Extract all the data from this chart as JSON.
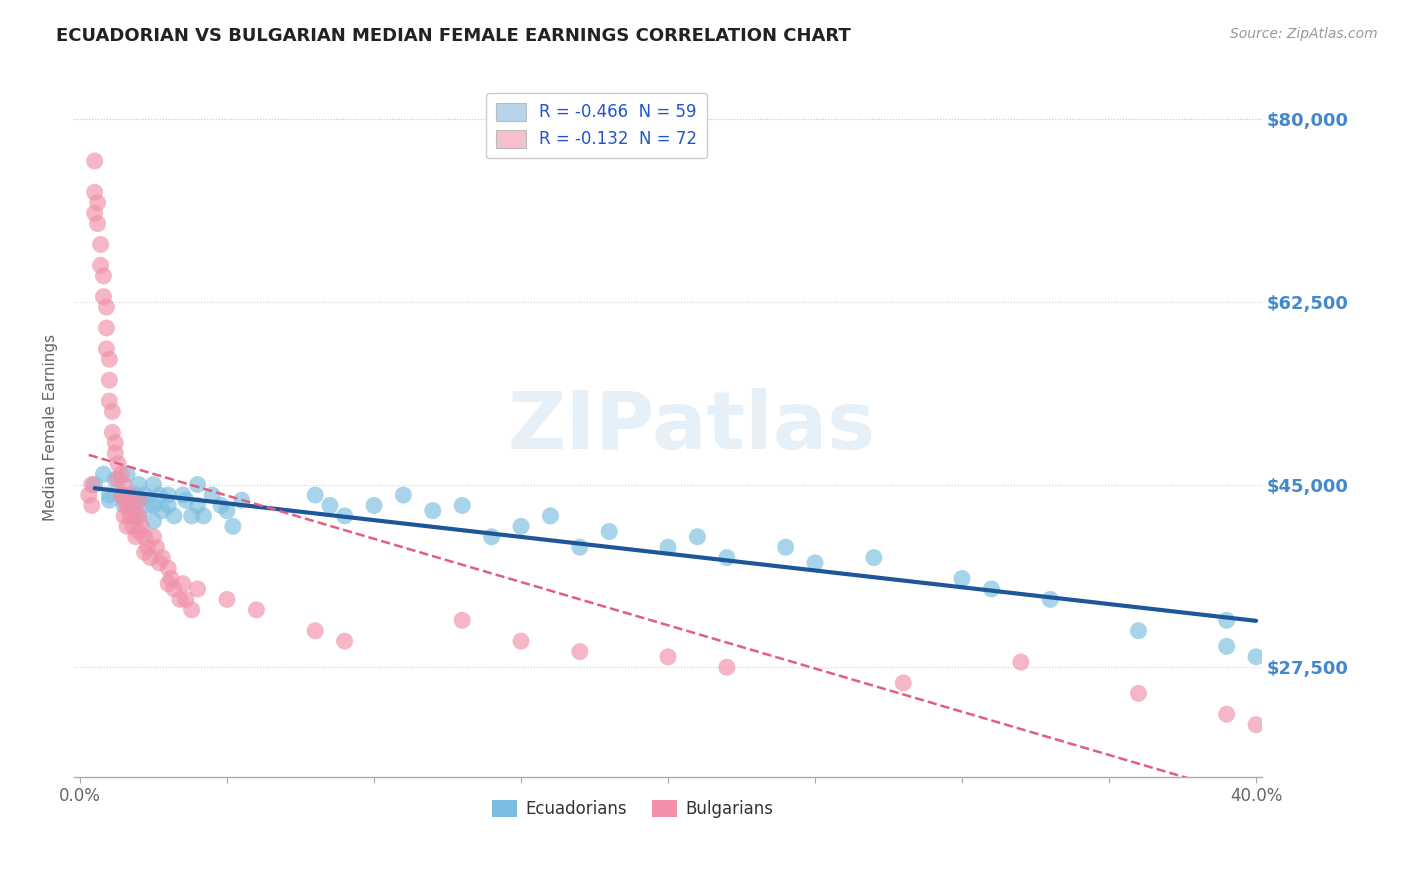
{
  "title": "ECUADORIAN VS BULGARIAN MEDIAN FEMALE EARNINGS CORRELATION CHART",
  "source": "Source: ZipAtlas.com",
  "ylabel": "Median Female Earnings",
  "xlim": [
    -0.002,
    0.402
  ],
  "ylim": [
    17000,
    84000
  ],
  "ytick_positions": [
    27500,
    45000,
    62500,
    80000
  ],
  "ytick_labels": [
    "$27,500",
    "$45,000",
    "$62,500",
    "$80,000"
  ],
  "xtick_positions": [
    0.0,
    0.05,
    0.1,
    0.15,
    0.2,
    0.25,
    0.3,
    0.35,
    0.4
  ],
  "xticklabels_show": [
    "0.0%",
    "",
    "",
    "",
    "",
    "",
    "",
    "",
    "40.0%"
  ],
  "watermark": "ZIPatlas",
  "legend_entries": [
    {
      "label": "R = -0.466  N = 59",
      "color": "#b8d4eb"
    },
    {
      "label": "R = -0.132  N = 72",
      "color": "#f5c0cc"
    }
  ],
  "legend_labels": [
    "Ecuadorians",
    "Bulgarians"
  ],
  "ecuadorian_color": "#7abde0",
  "bulgarian_color": "#f090a8",
  "ecuadorian_line_color": "#1e5799",
  "bulgarian_line_color": "#e06080",
  "background_color": "#ffffff",
  "grid_color": "#cccccc",
  "title_color": "#222222",
  "right_tick_color": "#4488cc",
  "ecuadorian_scatter_x": [
    0.005,
    0.008,
    0.01,
    0.01,
    0.012,
    0.015,
    0.015,
    0.016,
    0.018,
    0.019,
    0.02,
    0.02,
    0.02,
    0.022,
    0.023,
    0.025,
    0.025,
    0.025,
    0.027,
    0.028,
    0.03,
    0.03,
    0.032,
    0.035,
    0.036,
    0.038,
    0.04,
    0.04,
    0.042,
    0.045,
    0.048,
    0.05,
    0.052,
    0.055,
    0.08,
    0.085,
    0.09,
    0.1,
    0.11,
    0.12,
    0.13,
    0.14,
    0.15,
    0.16,
    0.17,
    0.18,
    0.2,
    0.21,
    0.22,
    0.24,
    0.25,
    0.27,
    0.3,
    0.31,
    0.33,
    0.36,
    0.39,
    0.39,
    0.4
  ],
  "ecuadorian_scatter_y": [
    45000,
    46000,
    44000,
    43500,
    45500,
    44000,
    43000,
    46000,
    42000,
    44000,
    45000,
    43500,
    42000,
    44000,
    43000,
    45000,
    43000,
    41500,
    44000,
    42500,
    44000,
    43000,
    42000,
    44000,
    43500,
    42000,
    45000,
    43000,
    42000,
    44000,
    43000,
    42500,
    41000,
    43500,
    44000,
    43000,
    42000,
    43000,
    44000,
    42500,
    43000,
    40000,
    41000,
    42000,
    39000,
    40500,
    39000,
    40000,
    38000,
    39000,
    37500,
    38000,
    36000,
    35000,
    34000,
    31000,
    29500,
    32000,
    28500
  ],
  "bulgarian_scatter_x": [
    0.003,
    0.004,
    0.004,
    0.005,
    0.005,
    0.005,
    0.006,
    0.006,
    0.007,
    0.007,
    0.008,
    0.008,
    0.009,
    0.009,
    0.009,
    0.01,
    0.01,
    0.01,
    0.011,
    0.011,
    0.012,
    0.012,
    0.013,
    0.013,
    0.014,
    0.014,
    0.015,
    0.015,
    0.015,
    0.016,
    0.016,
    0.017,
    0.017,
    0.018,
    0.018,
    0.019,
    0.019,
    0.02,
    0.02,
    0.02,
    0.021,
    0.022,
    0.022,
    0.023,
    0.024,
    0.025,
    0.026,
    0.027,
    0.028,
    0.03,
    0.03,
    0.031,
    0.032,
    0.034,
    0.035,
    0.036,
    0.038,
    0.04,
    0.05,
    0.06,
    0.08,
    0.09,
    0.13,
    0.15,
    0.17,
    0.2,
    0.22,
    0.28,
    0.32,
    0.36,
    0.39,
    0.4
  ],
  "bulgarian_scatter_y": [
    44000,
    45000,
    43000,
    76000,
    73000,
    71000,
    72000,
    70000,
    68000,
    66000,
    65000,
    63000,
    62000,
    60000,
    58000,
    57000,
    55000,
    53000,
    52000,
    50000,
    49000,
    48000,
    47000,
    45500,
    46000,
    44000,
    45000,
    43500,
    42000,
    43000,
    41000,
    44000,
    42000,
    43000,
    41000,
    42000,
    40000,
    43500,
    42000,
    40500,
    41000,
    40000,
    38500,
    39000,
    38000,
    40000,
    39000,
    37500,
    38000,
    37000,
    35500,
    36000,
    35000,
    34000,
    35500,
    34000,
    33000,
    35000,
    34000,
    33000,
    31000,
    30000,
    32000,
    30000,
    29000,
    28500,
    27500,
    26000,
    28000,
    25000,
    23000,
    22000
  ]
}
